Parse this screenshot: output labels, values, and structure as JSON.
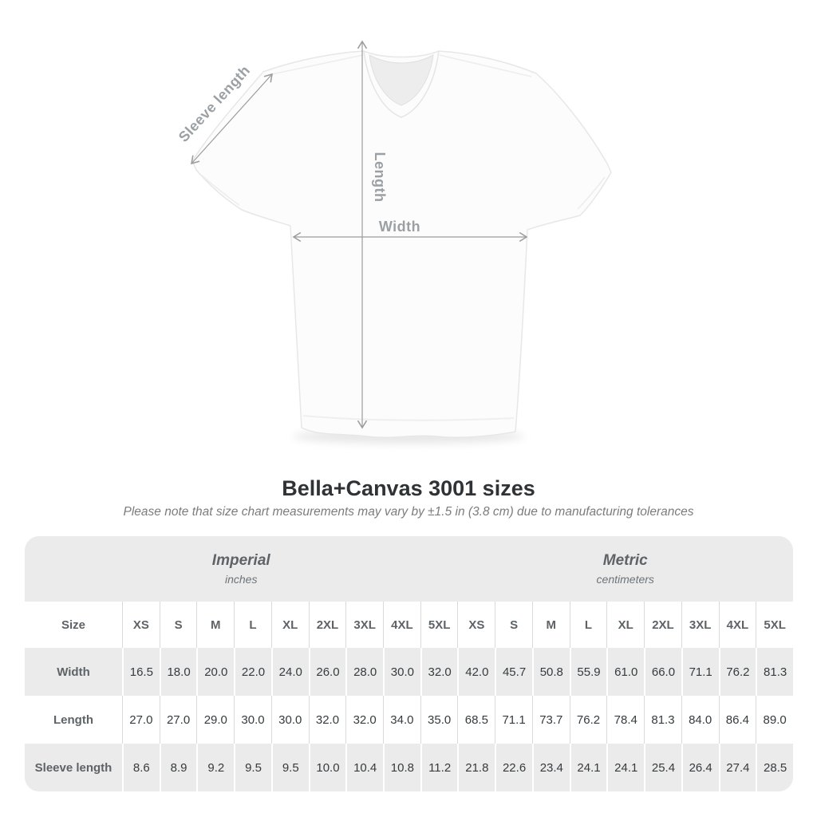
{
  "diagram": {
    "sleeve_label": "Sleeve length",
    "length_label": "Length",
    "width_label": "Width"
  },
  "title": "Bella+Canvas 3001 sizes",
  "note": "Please note that size chart measurements may vary by ±1.5 in (3.8 cm) due to manufacturing tolerances",
  "colors": {
    "table_stripe": "#ebebeb",
    "annotation_gray": "#9aa0a4",
    "label_text": "#5d6367",
    "value_text": "#363b3e",
    "title_text": "#2f3336"
  },
  "chart_data": {
    "type": "table",
    "title": "Bella+Canvas 3001 sizes",
    "corner_header": "Size",
    "groups": [
      {
        "label": "Imperial",
        "unit": "inches"
      },
      {
        "label": "Metric",
        "unit": "centimeters"
      }
    ],
    "sizes": [
      "XS",
      "S",
      "M",
      "L",
      "XL",
      "2XL",
      "3XL",
      "4XL",
      "5XL"
    ],
    "measurements": [
      {
        "label": "Width",
        "imperial": [
          16.5,
          18.0,
          20.0,
          22.0,
          24.0,
          26.0,
          28.0,
          30.0,
          32.0
        ],
        "metric": [
          42.0,
          45.7,
          50.8,
          55.9,
          61.0,
          66.0,
          71.1,
          76.2,
          81.3
        ]
      },
      {
        "label": "Length",
        "imperial": [
          27.0,
          27.0,
          29.0,
          30.0,
          30.0,
          32.0,
          32.0,
          34.0,
          35.0
        ],
        "metric": [
          68.5,
          71.1,
          73.7,
          76.2,
          78.4,
          81.3,
          84.0,
          86.4,
          89.0
        ]
      },
      {
        "label": "Sleeve length",
        "imperial": [
          8.6,
          8.9,
          9.2,
          9.5,
          9.5,
          10.0,
          10.4,
          10.8,
          11.2
        ],
        "metric": [
          21.8,
          22.6,
          23.4,
          24.1,
          24.1,
          25.4,
          26.4,
          27.4,
          28.5
        ]
      }
    ]
  }
}
